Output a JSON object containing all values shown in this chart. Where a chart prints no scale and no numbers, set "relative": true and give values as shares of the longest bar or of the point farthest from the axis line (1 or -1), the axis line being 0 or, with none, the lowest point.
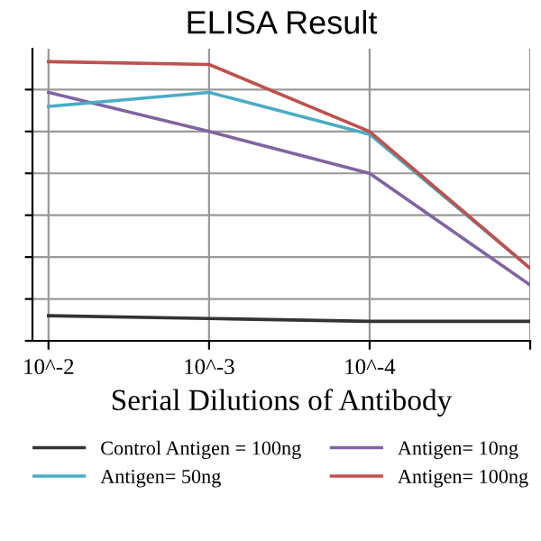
{
  "chart_data": {
    "type": "line",
    "title": "ELISA Result",
    "xlabel": "Serial Dilutions of Antibody",
    "relative": true,
    "grid": true,
    "legend": "bottom",
    "categories": [
      "10^-2",
      "10^-3",
      "10^-4",
      null
    ],
    "series": [
      {
        "name": "Control Antigen = 100ng",
        "color": "#333333",
        "values": [
          0.09,
          0.08,
          0.07,
          0.07
        ]
      },
      {
        "name": "Antigen= 10ng",
        "color": "#8064a2",
        "values": [
          0.89,
          0.75,
          0.6,
          0.2
        ]
      },
      {
        "name": "Antigen= 50ng",
        "color": "#4bacc6",
        "values": [
          0.84,
          0.89,
          0.74,
          0.26
        ]
      },
      {
        "name": "Antigen= 100ng",
        "color": "#c0504d",
        "values": [
          1.0,
          0.99,
          0.75,
          0.26
        ]
      }
    ]
  }
}
